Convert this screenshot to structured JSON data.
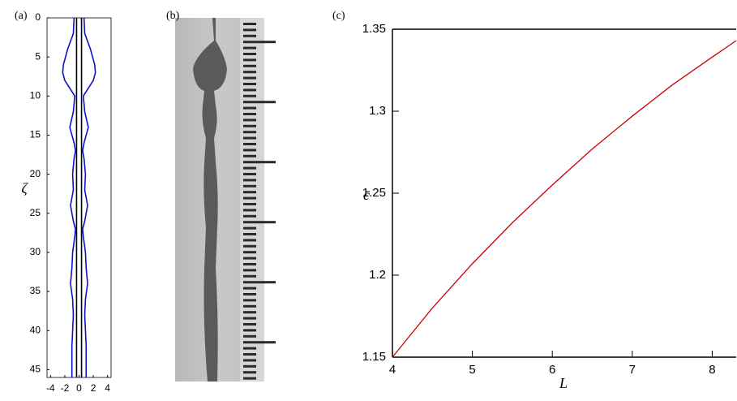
{
  "chart_data": [
    {
      "type": "profile",
      "label": "(a)",
      "ylabel": "ζ",
      "y": [
        0,
        2,
        4,
        6,
        7,
        8,
        10,
        12,
        14,
        16,
        17,
        18,
        20,
        22,
        24,
        26,
        27,
        28,
        30,
        32,
        34,
        36,
        38,
        40,
        42,
        44,
        46
      ],
      "series": [
        {
          "color": "#1010c8",
          "values": [
            0.7,
            0.8,
            1.6,
            2.2,
            2.3,
            2.0,
            0.6,
            0.8,
            1.3,
            0.7,
            0.5,
            0.7,
            0.9,
            0.8,
            1.2,
            0.8,
            0.5,
            0.6,
            0.9,
            1.0,
            1.2,
            0.9,
            0.8,
            0.9,
            1.0,
            1.0,
            1.0
          ]
        },
        {
          "color": "#1010c8",
          "values": [
            -0.7,
            -0.8,
            -1.6,
            -2.2,
            -2.3,
            -2.0,
            -0.6,
            -0.8,
            -1.3,
            -0.7,
            -0.5,
            -0.7,
            -0.9,
            -0.8,
            -1.2,
            -0.8,
            -0.5,
            -0.6,
            -0.9,
            -1.0,
            -1.2,
            -0.9,
            -0.8,
            -0.9,
            -1.0,
            -1.0,
            -1.0
          ]
        },
        {
          "color": "#000000",
          "values": [
            0.35,
            0.35,
            0.35,
            0.35,
            0.35,
            0.35,
            0.35,
            0.35,
            0.35,
            0.35,
            0.35,
            0.35,
            0.35,
            0.35,
            0.35,
            0.35,
            0.35,
            0.35,
            0.35,
            0.35,
            0.35,
            0.35,
            0.35,
            0.35,
            0.35,
            0.35,
            0.35
          ]
        },
        {
          "color": "#000000",
          "values": [
            -0.35,
            -0.35,
            -0.35,
            -0.35,
            -0.35,
            -0.35,
            -0.35,
            -0.35,
            -0.35,
            -0.35,
            -0.35,
            -0.35,
            -0.35,
            -0.35,
            -0.35,
            -0.35,
            -0.35,
            -0.35,
            -0.35,
            -0.35,
            -0.35,
            -0.35,
            -0.35,
            -0.35,
            -0.35,
            -0.35,
            -0.35
          ]
        }
      ],
      "xlim": [
        -4.5,
        4.5
      ],
      "xticks": [
        -4,
        -2,
        0,
        2,
        4
      ],
      "ylim": [
        0,
        46
      ],
      "yticks": [
        0,
        5,
        10,
        15,
        20,
        25,
        30,
        35,
        40,
        45
      ],
      "y_reversed": true
    },
    {
      "type": "line",
      "label": "(c)",
      "xlabel": "L",
      "ylabel": "c̄",
      "x": [
        4,
        4.5,
        5,
        5.5,
        6,
        6.5,
        7,
        7.5,
        8,
        8.3
      ],
      "series": [
        {
          "color": "#cc0000",
          "values": [
            1.15,
            1.18,
            1.207,
            1.232,
            1.255,
            1.277,
            1.297,
            1.316,
            1.333,
            1.343
          ]
        }
      ],
      "xlim": [
        4,
        8.3
      ],
      "xticks": [
        4,
        5,
        6,
        7,
        8
      ],
      "ylim": [
        1.15,
        1.35
      ],
      "yticks": [
        1.15,
        1.2,
        1.25,
        1.3,
        1.35
      ]
    }
  ],
  "photo": {
    "label": "(b)"
  }
}
